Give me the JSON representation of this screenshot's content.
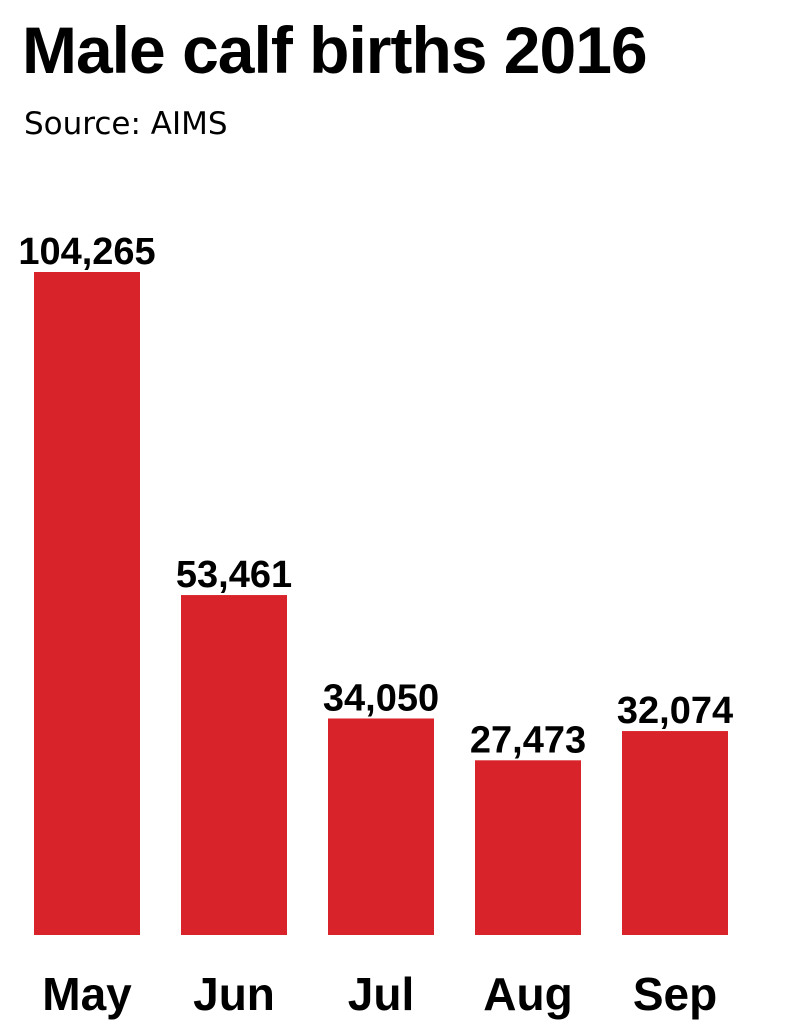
{
  "chart_data": {
    "type": "bar",
    "title": "Male calf births 2016",
    "subtitle": "Source: AIMS",
    "categories": [
      "May",
      "Jun",
      "Jul",
      "Aug",
      "Sep"
    ],
    "values": [
      104265,
      53461,
      34050,
      27473,
      32074
    ],
    "value_labels": [
      "104,265",
      "53,461",
      "34,050",
      "27,473",
      "32,074"
    ],
    "xlabel": "",
    "ylabel": "",
    "ylim": [
      0,
      104265
    ],
    "grid": false,
    "legend": "none",
    "bar_color": "#d9232a"
  }
}
